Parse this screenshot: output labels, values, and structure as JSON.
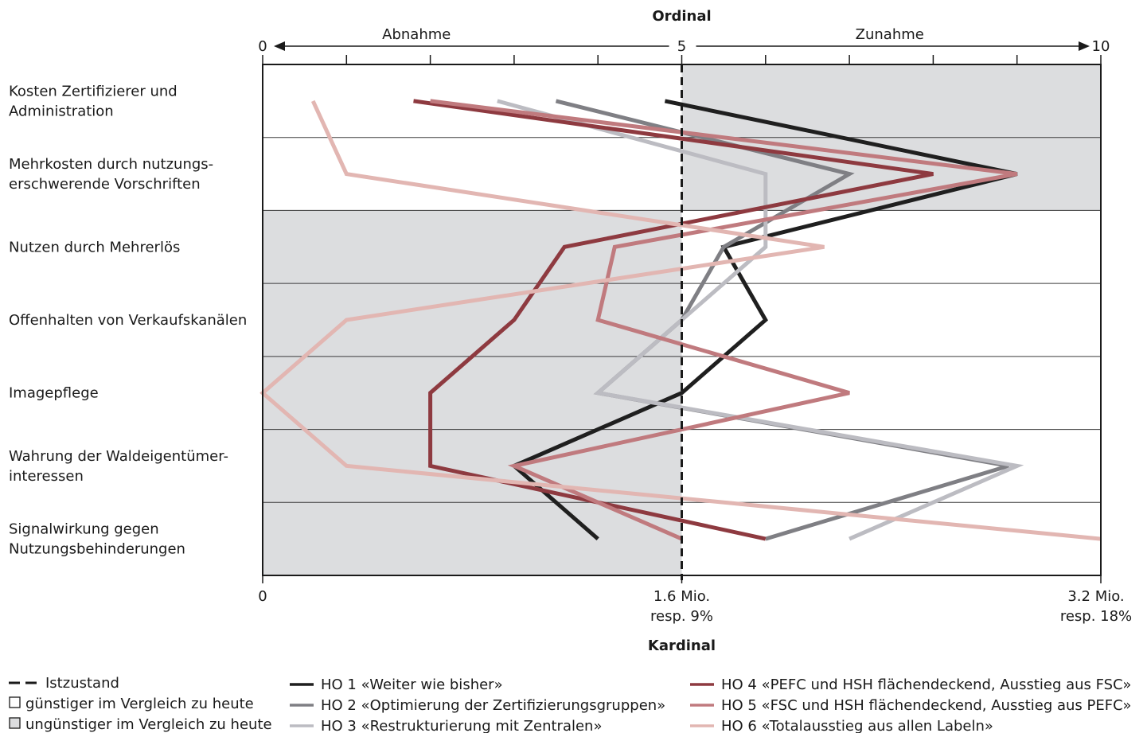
{
  "chart_data": {
    "type": "line",
    "top_axis": {
      "title": "Ordinal",
      "min_label": "0",
      "mid_label": "5",
      "max_label": "10",
      "left_arrow_label": "Abnahme",
      "right_arrow_label": "Zunahme",
      "range": [
        0,
        10
      ],
      "ticks": [
        0,
        1,
        2,
        3,
        4,
        5,
        6,
        7,
        8,
        9,
        10
      ]
    },
    "bottom_axis": {
      "title": "Kardinal",
      "tick_0": "0",
      "tick_mid_1": "1.6 Mio.",
      "tick_mid_2": "resp. 9%",
      "tick_max_1": "3.2 Mio.",
      "tick_max_2": "resp. 18%"
    },
    "categories": [
      "Kosten Zertifizierer und Administration",
      "Mehrkosten durch nutzungs-erschwerende Vorschriften",
      "Nutzen durch Mehrerlös",
      "Offenhalten von Verkaufskanälen",
      "Imagepflege",
      "Wahrung der Waldeigentümer-interessen",
      "Signalwirkung gegen Nutzungsbehinderungen"
    ],
    "category_lines": [
      [
        "Kosten Zertifizierer und",
        "Administration"
      ],
      [
        "Mehrkosten durch nutzungs-",
        "erschwerende Vorschriften"
      ],
      [
        "Nutzen durch Mehrerlös"
      ],
      [
        "Offenhalten von Verkaufskanälen"
      ],
      [
        "Imagepflege"
      ],
      [
        "Wahrung der Waldeigentümer-",
        "interessen"
      ],
      [
        "Signalwirkung gegen",
        "Nutzungsbehinderungen"
      ]
    ],
    "unfavorable_shading": [
      {
        "category": 0,
        "side": "right"
      },
      {
        "category": 1,
        "side": "right"
      },
      {
        "category": 2,
        "side": "left"
      },
      {
        "category": 3,
        "side": "left"
      },
      {
        "category": 4,
        "side": "left"
      },
      {
        "category": 5,
        "side": "left"
      },
      {
        "category": 6,
        "side": "left"
      }
    ],
    "status_quo": 5,
    "series": [
      {
        "name": "HO 1 «Weiter wie bisher»",
        "color": "#1f1f1f",
        "values": [
          4.8,
          9.0,
          5.5,
          6.0,
          5.0,
          3.0,
          4.0
        ]
      },
      {
        "name": "HO 2 «Optimierung der Zertifizierungsgruppen»",
        "color": "#7f7f84",
        "values": [
          3.5,
          7.0,
          5.5,
          5.0,
          4.0,
          8.9,
          6.0
        ]
      },
      {
        "name": "HO 3 «Restrukturierung mit Zentralen»",
        "color": "#bcbcc2",
        "values": [
          2.8,
          6.0,
          6.0,
          5.0,
          4.0,
          9.0,
          7.0
        ]
      },
      {
        "name": "HO 4 «PEFC und HSH flächendeckend, Ausstieg aus FSC»",
        "color": "#8e3a40",
        "values": [
          1.8,
          8.0,
          3.6,
          3.0,
          2.0,
          2.0,
          6.0
        ]
      },
      {
        "name": "HO 5 «FSC und HSH flächendeckend, Ausstieg aus PEFC»",
        "color": "#c07a7e",
        "values": [
          2.0,
          9.0,
          4.2,
          4.0,
          7.0,
          3.0,
          5.0
        ]
      },
      {
        "name": "HO 6 «Totalausstieg aus allen Labeln»",
        "color": "#e2b6b2",
        "values": [
          0.6,
          1.0,
          6.7,
          1.0,
          0.0,
          1.0,
          10.0
        ]
      }
    ]
  },
  "legend": {
    "status_quo": "Istzustand",
    "favorable": "günstiger im Vergleich zu heute",
    "unfavorable": "ungünstiger im Vergleich zu heute"
  },
  "colors": {
    "shade": "#dcdddf",
    "frame": "#1a1a1a"
  }
}
